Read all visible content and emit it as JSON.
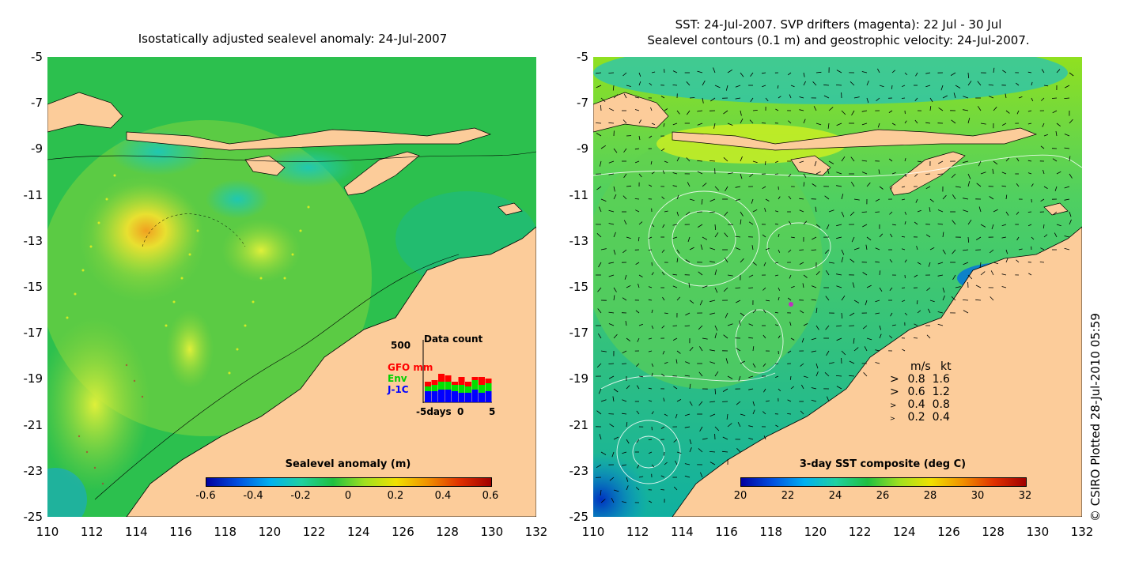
{
  "left_panel": {
    "title": "Isostatically adjusted sealevel anomaly: 24-Jul-2007",
    "colorbar": {
      "label": "Sealevel anomaly (m)",
      "ticks": [
        "-0.6",
        "-0.4",
        "-0.2",
        "0",
        "0.2",
        "0.4",
        "0.6"
      ]
    },
    "inset": {
      "title": "Data count",
      "ymax_label": "500",
      "series": [
        {
          "name": "GFO mm",
          "color": "#ff0000"
        },
        {
          "name": "Env",
          "color": "#00e000"
        },
        {
          "name": "J-1C",
          "color": "#0000ff"
        }
      ],
      "x_ticks": [
        "-5days",
        "0",
        "5"
      ]
    }
  },
  "right_panel": {
    "title_line1": "SST: 24-Jul-2007. SVP drifters (magenta): 22 Jul - 30 Jul",
    "title_line2": "Sealevel contours (0.1 m) and geostrophic velocity: 24-Jul-2007.",
    "colorbar": {
      "label": "3-day SST composite (deg C)",
      "ticks": [
        "20",
        "22",
        "24",
        "26",
        "28",
        "30",
        "32"
      ]
    },
    "velocity_legend": {
      "header_ms": "m/s",
      "header_kt": "kt",
      "rows": [
        {
          "ms": "0.8",
          "kt": "1.6"
        },
        {
          "ms": "0.6",
          "kt": "1.2"
        },
        {
          "ms": "0.4",
          "kt": "0.8"
        },
        {
          "ms": "0.2",
          "kt": "0.4"
        }
      ]
    }
  },
  "axes": {
    "y_ticks": [
      "-5",
      "-7",
      "-9",
      "-11",
      "-13",
      "-15",
      "-17",
      "-19",
      "-21",
      "-23",
      "-25"
    ],
    "x_ticks": [
      "110",
      "112",
      "114",
      "116",
      "118",
      "120",
      "122",
      "124",
      "126",
      "128",
      "130",
      "132"
    ]
  },
  "credit": "© CSIRO Plotted 28-Jul-2010 05:59",
  "colors": {
    "land": "#fccc9a",
    "sea_base": "#22b84a",
    "sst_base": "#1fb86a"
  }
}
